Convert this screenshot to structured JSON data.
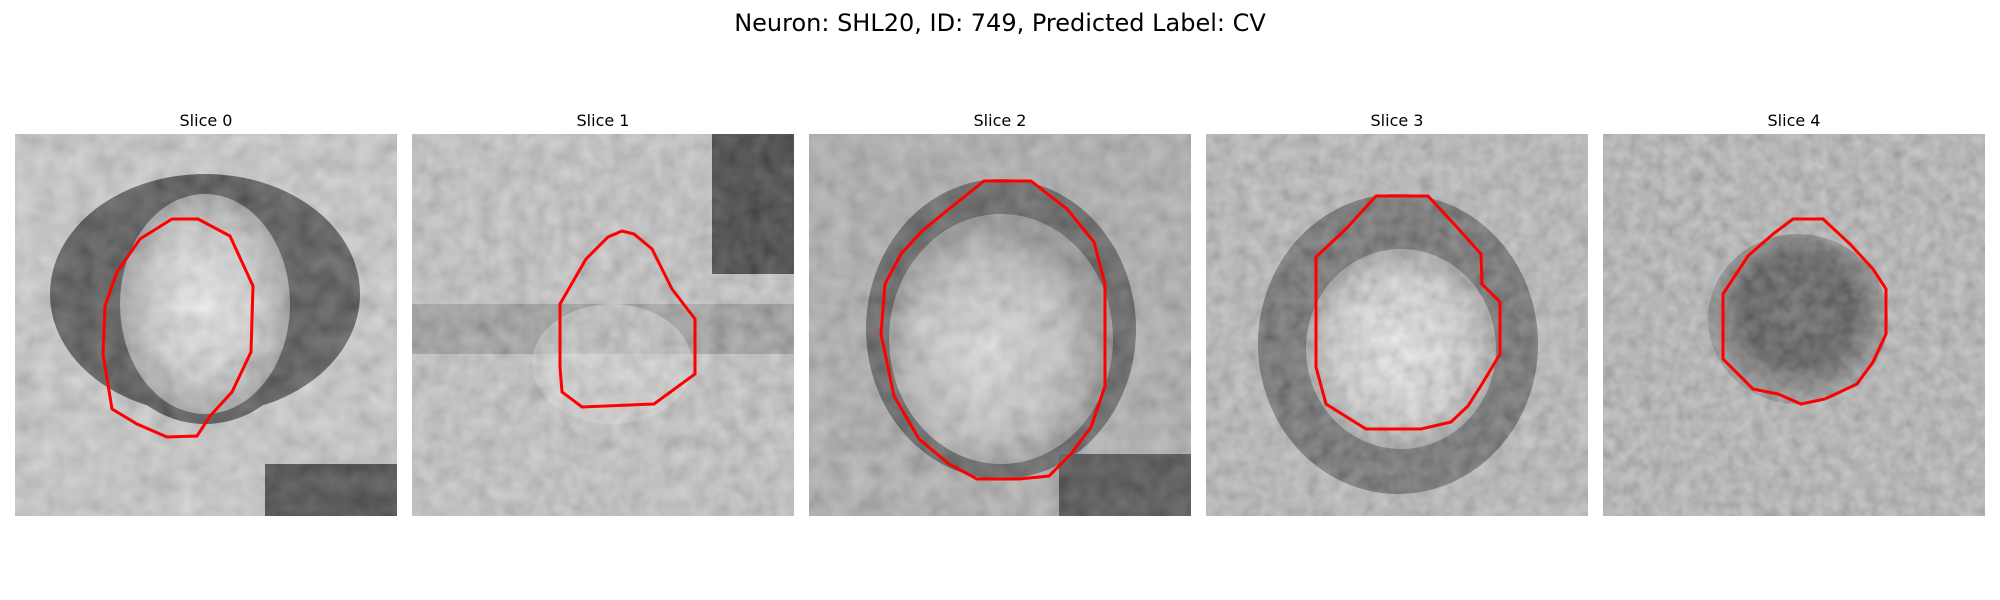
{
  "figure": {
    "title": "Neuron: SHL20, ID: 749, Predicted Label: CV"
  },
  "panels": [
    {
      "title": "Slice 0",
      "outline_color": "#ff0000",
      "image_content": "grayscale microscopy slice with bright cell body surrounded by dark membrane ring"
    },
    {
      "title": "Slice 1",
      "outline_color": "#ff0000",
      "image_content": "grayscale microscopy slice, lighter textured region with red outline"
    },
    {
      "title": "Slice 2",
      "outline_color": "#ff0000",
      "image_content": "grayscale microscopy slice with large round cell and dark ring"
    },
    {
      "title": "Slice 3",
      "outline_color": "#ff0000",
      "image_content": "grayscale microscopy slice with bright round cell inside dark ring"
    },
    {
      "title": "Slice 4",
      "outline_color": "#ff0000",
      "image_content": "grayscale microscopy slice with dark cell interior"
    }
  ]
}
